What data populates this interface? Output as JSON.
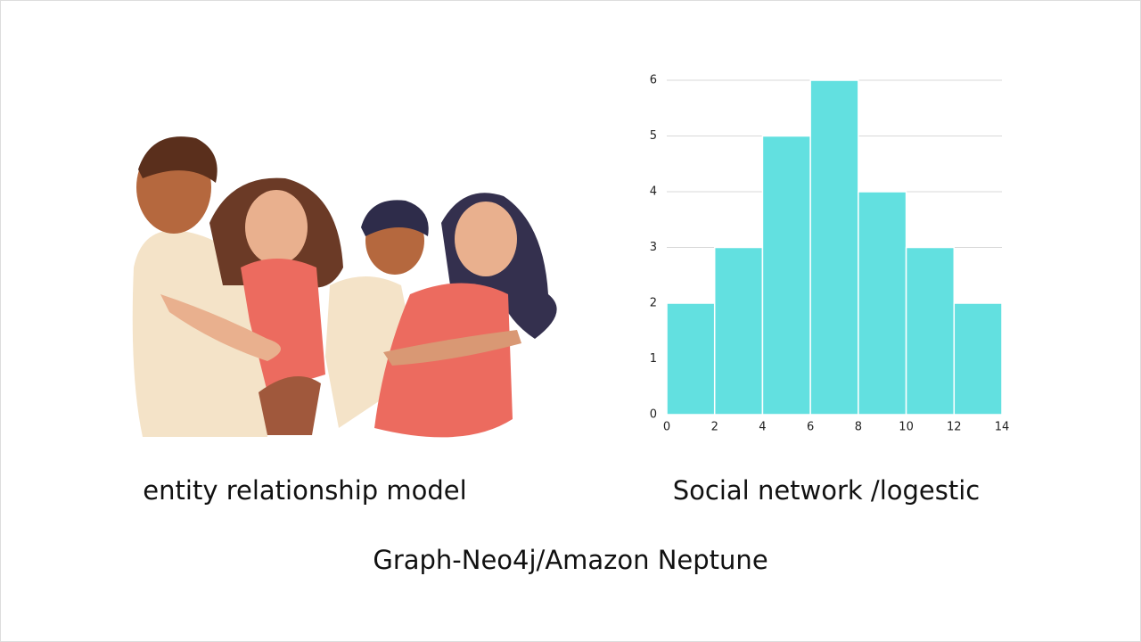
{
  "captions": {
    "left": "entity relationship model",
    "right": "Social network /logestic",
    "bottom": "Graph-Neo4j/Amazon Neptune"
  },
  "chart_data": {
    "type": "histogram",
    "bins": [
      0,
      2,
      4,
      6,
      8,
      10,
      12,
      14
    ],
    "values": [
      2,
      3,
      5,
      6,
      4,
      3,
      2
    ],
    "color": "#62e0e0",
    "xlim": [
      0,
      14
    ],
    "xticks": [
      0,
      2,
      4,
      6,
      8,
      10,
      12,
      14
    ],
    "ylim": [
      0,
      6
    ],
    "yticks": [
      0,
      1,
      2,
      3,
      4,
      5,
      6
    ],
    "grid": true
  }
}
